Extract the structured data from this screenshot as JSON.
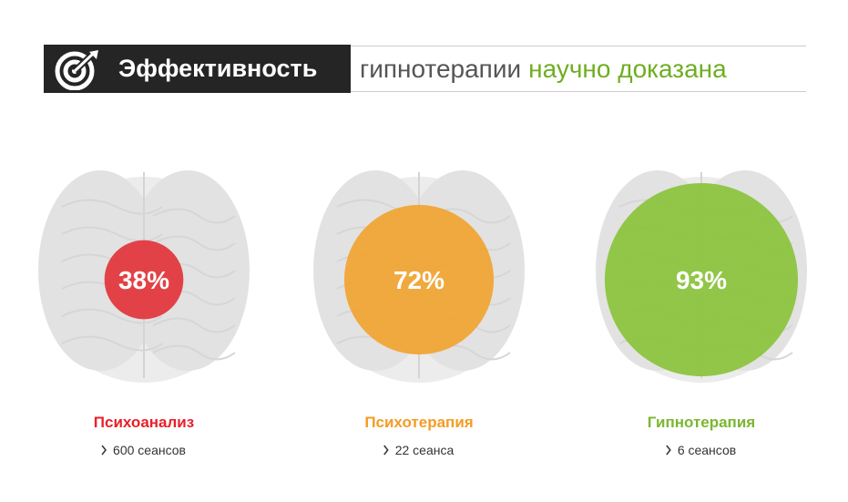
{
  "chart_data": {
    "type": "bubble",
    "title": {
      "highlight": "Эффективность",
      "middle": "гипнотерапии",
      "accent": "научно доказана"
    },
    "categories": [
      "Психоанализ",
      "Психотерапия",
      "Гипнотерапия"
    ],
    "values": [
      38,
      72,
      93
    ],
    "value_labels": [
      "38%",
      "72%",
      "93%"
    ],
    "notes": [
      "600 сеансов",
      "22 сеанса",
      "6 сеансов"
    ],
    "colors": [
      "#e2393e",
      "#f0a535",
      "#8cc43f"
    ],
    "label_colors": [
      "#e8202a",
      "#f39c25",
      "#7ab730"
    ]
  }
}
